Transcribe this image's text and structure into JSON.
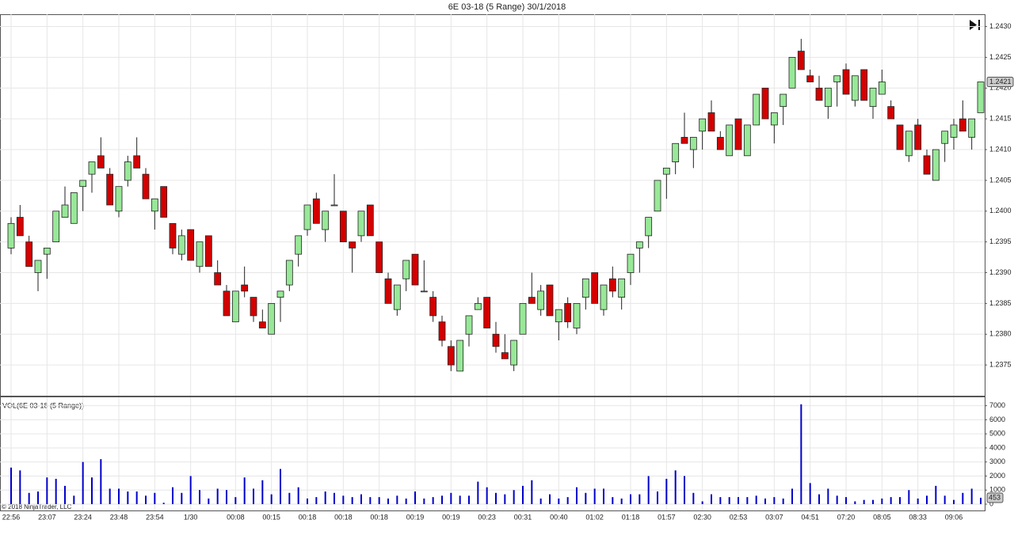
{
  "chart_data": [
    {
      "type": "candlestick",
      "title": "6E 03-18 (5 Range)  30/1/2018",
      "categories": [
        "22:56",
        null,
        null,
        null,
        "23:07",
        null,
        null,
        null,
        "23:24",
        null,
        null,
        null,
        "23:48",
        null,
        null,
        null,
        "23:54",
        null,
        null,
        null,
        "1/30",
        null,
        null,
        null,
        null,
        "00:08",
        null,
        null,
        null,
        "00:15",
        null,
        null,
        null,
        "00:18",
        null,
        null,
        null,
        "00:18",
        null,
        null,
        null,
        "00:18",
        null,
        null,
        null,
        "00:19",
        null,
        null,
        null,
        "00:19",
        null,
        null,
        null,
        "00:23",
        null,
        null,
        null,
        "00:31",
        null,
        null,
        null,
        "00:40",
        null,
        null,
        null,
        "01:02",
        null,
        null,
        null,
        "01:18",
        null,
        null,
        null,
        "01:57",
        null,
        null,
        null,
        "02:30",
        null,
        null,
        null,
        "02:53",
        null,
        null,
        null,
        "03:07",
        null,
        null,
        null,
        "04:51",
        null,
        null,
        null,
        "07:20",
        null,
        null,
        null,
        "08:05",
        null,
        null,
        null,
        "08:33",
        null,
        null,
        null,
        "09:06",
        null,
        null,
        null
      ],
      "open": [
        1.2394,
        1.2399,
        1.2395,
        1.239,
        1.2393,
        1.2395,
        1.2399,
        1.2398,
        1.2404,
        1.2406,
        1.2409,
        1.2406,
        1.24,
        1.2405,
        1.2409,
        1.2406,
        1.24,
        1.2404,
        1.2398,
        1.2393,
        1.2397,
        1.2391,
        1.2396,
        1.239,
        1.2387,
        1.2382,
        1.2388,
        1.2386,
        1.2382,
        1.238,
        1.2386,
        1.2388,
        1.2393,
        1.2397,
        1.2402,
        1.2397,
        1.2401,
        1.24,
        1.2395,
        1.2396,
        1.2401,
        1.2395,
        1.2389,
        1.2384,
        1.2389,
        1.2393,
        1.2387,
        1.2386,
        1.2382,
        1.2378,
        1.2374,
        1.238,
        1.2384,
        1.2386,
        1.238,
        1.2377,
        1.2375,
        1.238,
        1.2386,
        1.2384,
        1.2388,
        1.2382,
        1.2385,
        1.2381,
        1.2386,
        1.239,
        1.2384,
        1.2389,
        1.2386,
        1.239,
        1.2394,
        1.2396,
        1.24,
        1.2406,
        1.2408,
        1.2412,
        1.241,
        1.2413,
        1.2416,
        1.2412,
        1.2409,
        1.2415,
        1.2409,
        1.2414,
        1.242,
        1.2414,
        1.2417,
        1.242,
        1.2426,
        1.2422,
        1.242,
        1.2417,
        1.2421,
        1.2423,
        1.2418,
        1.2423,
        1.2417,
        1.2419,
        1.2417,
        1.2414,
        1.2409,
        1.2414,
        1.2409,
        1.2405,
        1.2411,
        1.2412,
        1.2415,
        1.2412,
        1.2416
      ],
      "high": [
        1.2399,
        1.2401,
        1.2396,
        1.2392,
        1.2394,
        1.24,
        1.2404,
        1.2403,
        1.2405,
        1.2408,
        1.2412,
        1.2407,
        1.2404,
        1.2409,
        1.2412,
        1.2407,
        1.2402,
        1.2404,
        1.2398,
        1.2397,
        1.2397,
        1.2395,
        1.2396,
        1.2392,
        1.2388,
        1.2387,
        1.2391,
        1.2386,
        1.2384,
        1.2385,
        1.2387,
        1.2392,
        1.2396,
        1.2401,
        1.2403,
        1.24,
        1.2406,
        1.24,
        1.2395,
        1.24,
        1.2401,
        1.2395,
        1.239,
        1.2388,
        1.2392,
        1.2393,
        1.2392,
        1.2387,
        1.2383,
        1.2379,
        1.2379,
        1.2383,
        1.2386,
        1.2386,
        1.2382,
        1.238,
        1.2379,
        1.2385,
        1.239,
        1.2388,
        1.2388,
        1.2384,
        1.2386,
        1.2385,
        1.2389,
        1.239,
        1.2388,
        1.2391,
        1.2389,
        1.2393,
        1.2395,
        1.2399,
        1.2405,
        1.2407,
        1.2411,
        1.2416,
        1.2412,
        1.2415,
        1.2418,
        1.2413,
        1.2414,
        1.2415,
        1.2414,
        1.2419,
        1.242,
        1.2416,
        1.2419,
        1.2425,
        1.2428,
        1.2423,
        1.2422,
        1.242,
        1.2422,
        1.2424,
        1.2422,
        1.2423,
        1.242,
        1.2423,
        1.2418,
        1.2414,
        1.2413,
        1.2415,
        1.241,
        1.241,
        1.2413,
        1.2415,
        1.2418,
        1.2415,
        1.2421
      ],
      "low": [
        1.2393,
        1.2396,
        1.2391,
        1.2387,
        1.2389,
        1.2395,
        1.2399,
        1.2398,
        1.24,
        1.2403,
        1.2407,
        1.2401,
        1.2399,
        1.2404,
        1.2407,
        1.2402,
        1.2397,
        1.2399,
        1.2393,
        1.2392,
        1.2392,
        1.239,
        1.2391,
        1.2388,
        1.2383,
        1.2382,
        1.2386,
        1.2382,
        1.2381,
        1.238,
        1.2382,
        1.2387,
        1.2391,
        1.2396,
        1.2398,
        1.2395,
        1.2401,
        1.2395,
        1.239,
        1.2395,
        1.2396,
        1.239,
        1.2385,
        1.2383,
        1.2387,
        1.2388,
        1.2387,
        1.2382,
        1.2378,
        1.2374,
        1.2374,
        1.2378,
        1.2384,
        1.2381,
        1.2377,
        1.2376,
        1.2374,
        1.238,
        1.2385,
        1.2383,
        1.2383,
        1.2379,
        1.2381,
        1.238,
        1.2384,
        1.2385,
        1.2383,
        1.2386,
        1.2384,
        1.2388,
        1.239,
        1.2394,
        1.24,
        1.2402,
        1.2406,
        1.2411,
        1.2407,
        1.241,
        1.2413,
        1.241,
        1.2409,
        1.241,
        1.2409,
        1.2414,
        1.2415,
        1.2411,
        1.2414,
        1.242,
        1.2423,
        1.2421,
        1.2418,
        1.2415,
        1.2417,
        1.2419,
        1.2417,
        1.2418,
        1.2415,
        1.2419,
        1.2415,
        1.241,
        1.2408,
        1.241,
        1.2406,
        1.2405,
        1.2408,
        1.241,
        1.2413,
        1.241,
        1.2416
      ],
      "close": [
        1.2398,
        1.2396,
        1.2391,
        1.2392,
        1.2394,
        1.24,
        1.2401,
        1.2403,
        1.2405,
        1.2408,
        1.2407,
        1.2401,
        1.2404,
        1.2408,
        1.2407,
        1.2402,
        1.2402,
        1.2399,
        1.2394,
        1.2396,
        1.2392,
        1.2395,
        1.2391,
        1.2388,
        1.2383,
        1.2387,
        1.2387,
        1.2383,
        1.2381,
        1.2385,
        1.2387,
        1.2392,
        1.2396,
        1.2401,
        1.2398,
        1.24,
        1.2401,
        1.2395,
        1.2394,
        1.24,
        1.2396,
        1.239,
        1.2385,
        1.2388,
        1.2392,
        1.2388,
        1.2387,
        1.2383,
        1.2379,
        1.2375,
        1.2379,
        1.2383,
        1.2385,
        1.2381,
        1.2378,
        1.2376,
        1.2379,
        1.2385,
        1.2385,
        1.2387,
        1.2383,
        1.2384,
        1.2382,
        1.2385,
        1.2389,
        1.2385,
        1.2388,
        1.2387,
        1.2389,
        1.2393,
        1.2395,
        1.2399,
        1.2405,
        1.2407,
        1.2411,
        1.2411,
        1.2412,
        1.2415,
        1.2413,
        1.241,
        1.2414,
        1.241,
        1.2414,
        1.2419,
        1.2415,
        1.2416,
        1.2419,
        1.2425,
        1.2423,
        1.2421,
        1.2418,
        1.242,
        1.2422,
        1.2419,
        1.2422,
        1.2418,
        1.242,
        1.2421,
        1.2415,
        1.241,
        1.2413,
        1.241,
        1.2406,
        1.241,
        1.2413,
        1.2414,
        1.2413,
        1.2415,
        1.2421
      ],
      "up_color": "#98e898",
      "down_color": "#d40000",
      "ylim": [
        1.237,
        1.2432
      ],
      "yticks": [
        1.2375,
        {
          "value": 1.238,
          "label": "1.2380"
        },
        1.2385,
        {
          "value": 1.239,
          "label": "1.2390"
        },
        1.2395,
        {
          "value": 1.24,
          "label": "1.2400"
        },
        1.2405,
        {
          "value": 1.241,
          "label": "1.2410"
        },
        1.2415,
        {
          "value": 1.242,
          "label": "1.2420"
        },
        1.2425,
        {
          "value": 1.243,
          "label": "1.2430"
        }
      ],
      "grid": true
    },
    {
      "type": "bar",
      "title": "VOL(6E 03-18 (5 Range))",
      "color": "#0000cc",
      "values": [
        2600,
        2400,
        800,
        900,
        1900,
        1800,
        1300,
        600,
        3000,
        1900,
        3200,
        1100,
        1100,
        900,
        900,
        600,
        800,
        100,
        1200,
        800,
        2000,
        1000,
        400,
        1100,
        1000,
        500,
        1900,
        1100,
        1700,
        700,
        2500,
        800,
        1200,
        400,
        500,
        900,
        800,
        600,
        500,
        700,
        500,
        500,
        400,
        600,
        400,
        900,
        400,
        500,
        600,
        800,
        600,
        600,
        1600,
        1200,
        800,
        700,
        1000,
        1300,
        1700,
        400,
        700,
        400,
        500,
        1200,
        800,
        1100,
        1100,
        500,
        400,
        700,
        700,
        2000,
        900,
        1800,
        2400,
        2000,
        800,
        200,
        700,
        500,
        500,
        500,
        500,
        600,
        400,
        500,
        400,
        1100,
        7100,
        1500,
        700,
        1100,
        600,
        500,
        200,
        300,
        300,
        400,
        500,
        500,
        1000,
        400,
        600,
        1300,
        600,
        300,
        800,
        1100,
        453
      ],
      "ylim": [
        -450,
        7600
      ],
      "yticks": [
        0,
        1000,
        2000,
        3000,
        4000,
        5000,
        6000,
        7000
      ],
      "grid": true
    },
    {
      "footer": "© 2018 NinjaTrader, LLC"
    }
  ]
}
